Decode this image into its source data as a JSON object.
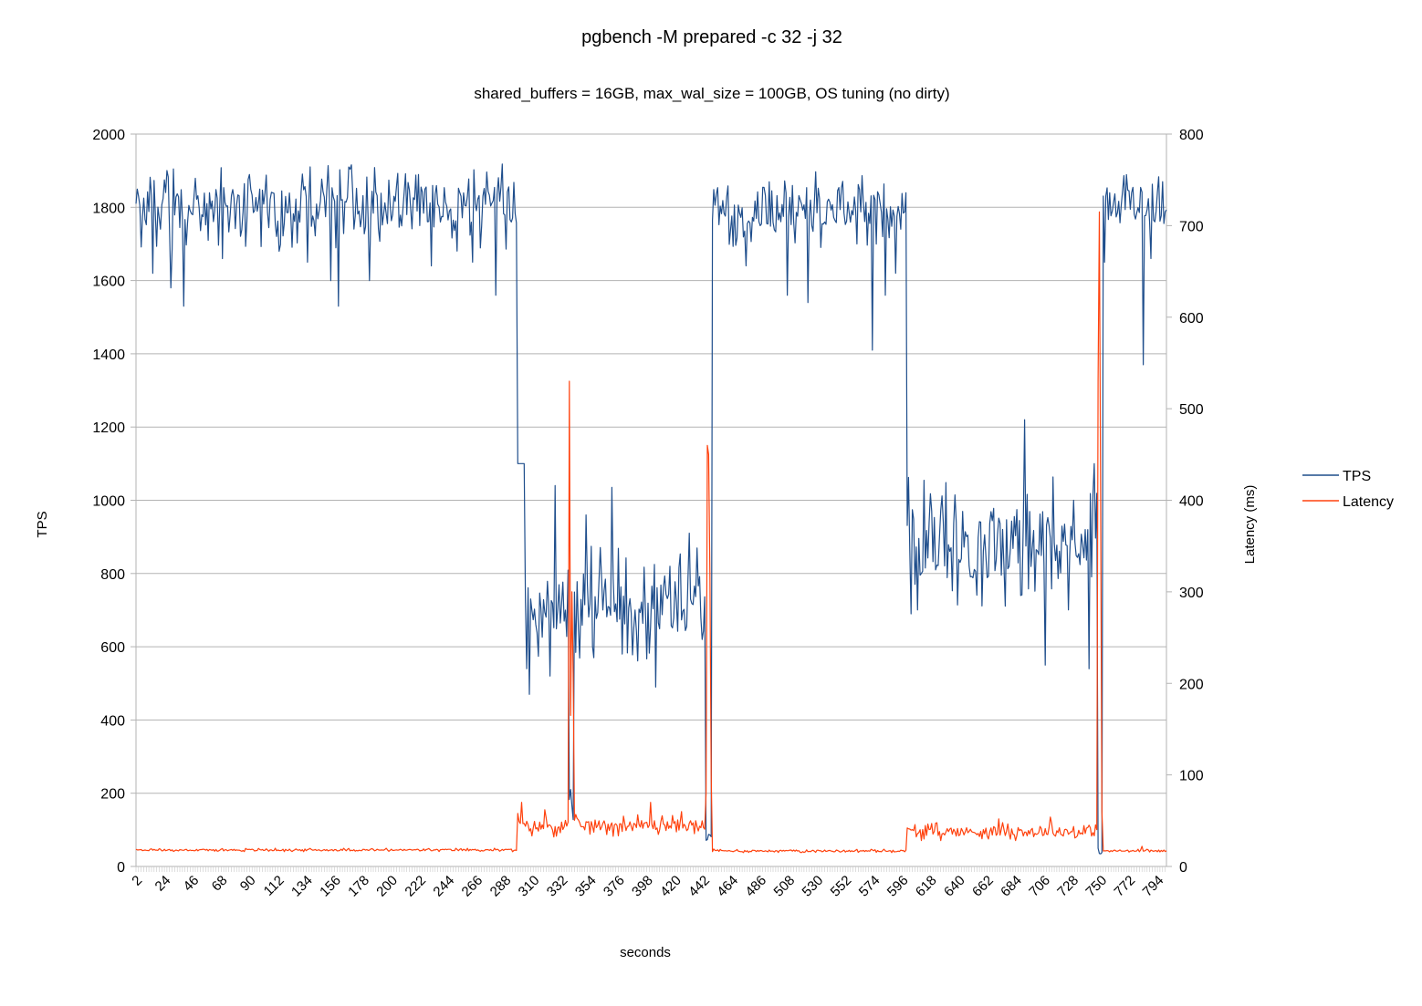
{
  "chart_data": {
    "type": "line",
    "title": "pgbench -M prepared -c 32 -j 32",
    "subtitle": "shared_buffers = 16GB, max_wal_size = 100GB, OS tuning (no dirty)",
    "xlabel": "seconds",
    "ylabel_left": "TPS",
    "ylabel_right": "Latency (ms)",
    "x_range": [
      1,
      800
    ],
    "x_tick_labels": [
      "2",
      "24",
      "46",
      "68",
      "90",
      "112",
      "134",
      "156",
      "178",
      "200",
      "222",
      "244",
      "266",
      "288",
      "310",
      "332",
      "354",
      "376",
      "398",
      "420",
      "442",
      "464",
      "486",
      "508",
      "530",
      "552",
      "574",
      "596",
      "618",
      "640",
      "662",
      "684",
      "706",
      "728",
      "750",
      "772",
      "794"
    ],
    "ylim_left": [
      0,
      2000
    ],
    "ylim_right": [
      0,
      800
    ],
    "y_ticks_left": [
      "0",
      "200",
      "400",
      "600",
      "800",
      "1000",
      "1200",
      "1400",
      "1600",
      "1800",
      "2000"
    ],
    "y_ticks_right": [
      "0",
      "100",
      "200",
      "300",
      "400",
      "500",
      "600",
      "700",
      "800"
    ],
    "grid": true,
    "legend_position": "right",
    "series": [
      {
        "name": "TPS",
        "axis": "left",
        "color": "#1f4e8c",
        "segments": [
          {
            "x_start": 1,
            "x_end": 296,
            "base": 1800,
            "variation": 120,
            "dips": [
              [
                14,
                1620
              ],
              [
                28,
                1580
              ],
              [
                38,
                1530
              ],
              [
                68,
                1660
              ],
              [
                112,
                1680
              ],
              [
                134,
                1650
              ],
              [
                152,
                1600
              ],
              [
                158,
                1530
              ],
              [
                182,
                1600
              ],
              [
                230,
                1640
              ],
              [
                262,
                1650
              ],
              [
                280,
                1560
              ],
              [
                292,
                1760
              ]
            ]
          },
          {
            "x_start": 297,
            "x_end": 302,
            "base": 1100,
            "variation": 0,
            "dips": []
          },
          {
            "x_start": 303,
            "x_end": 336,
            "base": 710,
            "variation": 170,
            "dips": [
              [
                304,
                540
              ],
              [
                306,
                470
              ],
              [
                326,
                1040
              ],
              [
                322,
                520
              ],
              [
                334,
                700
              ]
            ]
          },
          {
            "x_start": 337,
            "x_end": 340,
            "base": 150,
            "variation": 50,
            "dips": [
              [
                338,
                210
              ]
            ]
          },
          {
            "x_start": 341,
            "x_end": 442,
            "base": 720,
            "variation": 160,
            "dips": [
              [
                350,
                960
              ],
              [
                356,
                570
              ],
              [
                370,
                1035
              ],
              [
                378,
                580
              ],
              [
                404,
                490
              ],
              [
                430,
                910
              ],
              [
                440,
                620
              ]
            ]
          },
          {
            "x_start": 443,
            "x_end": 447,
            "base": 80,
            "variation": 20,
            "dips": []
          },
          {
            "x_start": 448,
            "x_end": 598,
            "base": 1800,
            "variation": 110,
            "dips": [
              [
                474,
                1640
              ],
              [
                506,
                1560
              ],
              [
                522,
                1540
              ],
              [
                582,
                1560
              ],
              [
                572,
                1410
              ],
              [
                560,
                1700
              ],
              [
                590,
                1620
              ]
            ]
          },
          {
            "x_start": 599,
            "x_end": 746,
            "base": 880,
            "variation": 190,
            "dips": [
              [
                602,
                690
              ],
              [
                610,
                800
              ],
              [
                690,
                1220
              ],
              [
                706,
                550
              ],
              [
                728,
                1000
              ],
              [
                740,
                540
              ],
              [
                744,
                1100
              ]
            ]
          },
          {
            "x_start": 747,
            "x_end": 750,
            "base": 40,
            "variation": 10,
            "dips": []
          },
          {
            "x_start": 751,
            "x_end": 800,
            "base": 1810,
            "variation": 110,
            "dips": [
              [
                752,
                1650
              ],
              [
                758,
                1790
              ],
              [
                782,
                1370
              ],
              [
                788,
                1660
              ]
            ]
          }
        ]
      },
      {
        "name": "Latency",
        "axis": "right",
        "color": "#ff420e",
        "segments": [
          {
            "x_start": 1,
            "x_end": 296,
            "base": 18,
            "variation": 2,
            "dips": []
          },
          {
            "x_start": 297,
            "x_end": 336,
            "base": 44,
            "variation": 12,
            "dips": [
              [
                297,
                58
              ],
              [
                300,
                70
              ],
              [
                318,
                62
              ]
            ]
          },
          {
            "x_start": 337,
            "x_end": 340,
            "base": 300,
            "variation": 0,
            "dips": [
              [
                337,
                530
              ],
              [
                338,
                165
              ],
              [
                339,
                300
              ],
              [
                340,
                210
              ]
            ]
          },
          {
            "x_start": 341,
            "x_end": 442,
            "base": 45,
            "variation": 12,
            "dips": [
              [
                400,
                70
              ],
              [
                424,
                60
              ]
            ]
          },
          {
            "x_start": 443,
            "x_end": 447,
            "base": 300,
            "variation": 0,
            "dips": [
              [
                443,
                80
              ],
              [
                444,
                460
              ],
              [
                445,
                450
              ],
              [
                446,
                320
              ],
              [
                447,
                100
              ]
            ]
          },
          {
            "x_start": 448,
            "x_end": 598,
            "base": 17,
            "variation": 2,
            "dips": []
          },
          {
            "x_start": 599,
            "x_end": 746,
            "base": 38,
            "variation": 10,
            "dips": [
              [
                599,
                42
              ],
              [
                670,
                52
              ],
              [
                710,
                54
              ]
            ]
          },
          {
            "x_start": 747,
            "x_end": 750,
            "base": 500,
            "variation": 0,
            "dips": [
              [
                747,
                530
              ],
              [
                748,
                715
              ],
              [
                749,
                400
              ],
              [
                750,
                60
              ]
            ]
          },
          {
            "x_start": 751,
            "x_end": 800,
            "base": 17,
            "variation": 2,
            "dips": [
              [
                781,
                22
              ]
            ]
          }
        ]
      }
    ]
  }
}
